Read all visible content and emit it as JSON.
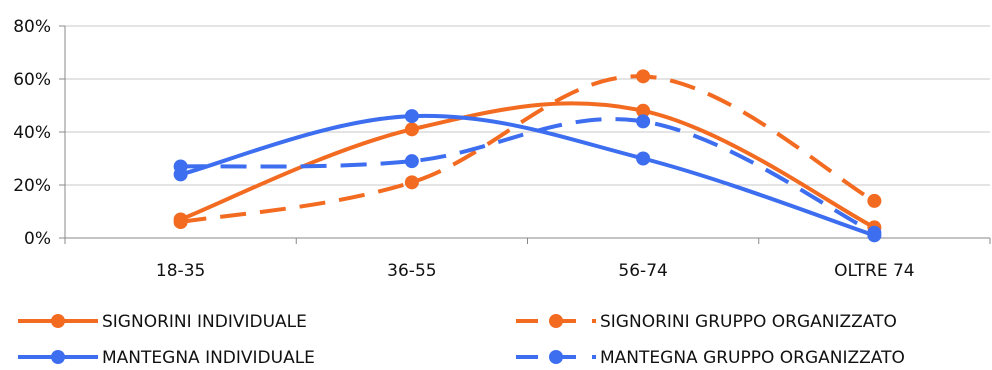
{
  "chart_data": {
    "type": "line",
    "categories": [
      "18-35",
      "36-55",
      "56-74",
      "OLTRE 74"
    ],
    "ylim": [
      0,
      80
    ],
    "yticks": [
      "0%",
      "20%",
      "40%",
      "60%",
      "80%"
    ],
    "grid": "horizontal",
    "legend_position": "bottom",
    "series": [
      {
        "name": "SIGNORINI INDIVIDUALE",
        "values": [
          7,
          41,
          48,
          4
        ],
        "color": "#F26B21",
        "dash": "solid"
      },
      {
        "name": "SIGNORINI GRUPPO ORGANIZZATO",
        "values": [
          6,
          21,
          61,
          14
        ],
        "color": "#F26B21",
        "dash": "dashed"
      },
      {
        "name": "MANTEGNA INDIVIDUALE",
        "values": [
          24,
          46,
          30,
          1
        ],
        "color": "#3D6EF0",
        "dash": "solid"
      },
      {
        "name": "MANTEGNA GRUPPO ORGANIZZATO",
        "values": [
          27,
          29,
          44,
          2
        ],
        "color": "#3D6EF0",
        "dash": "dashed"
      }
    ]
  }
}
